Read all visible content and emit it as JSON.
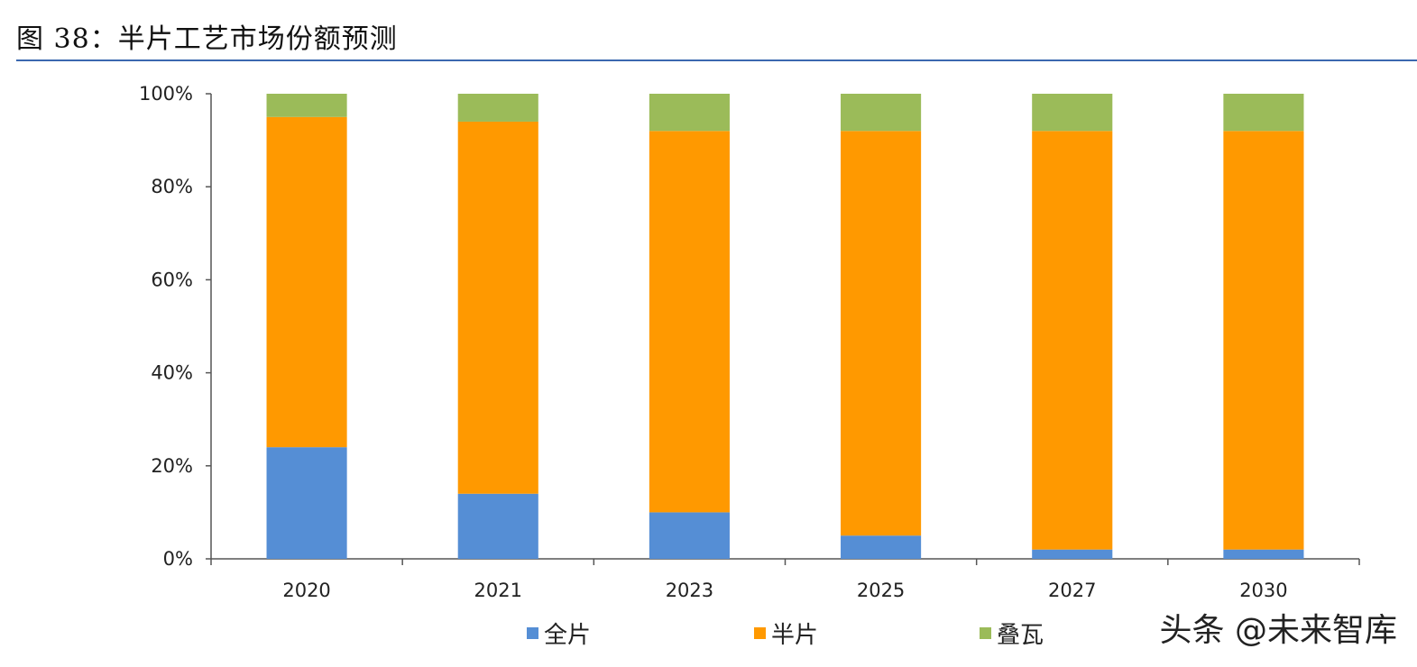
{
  "figure": {
    "title": "图 38：半片工艺市场份额预测",
    "watermark": "头条 @未来智库"
  },
  "chart_data": {
    "type": "bar",
    "stacked": true,
    "percent_stacked": true,
    "title": "图 38：半片工艺市场份额预测",
    "xlabel": "",
    "ylabel": "",
    "ylim": [
      0,
      100
    ],
    "yticks": [
      "0%",
      "20%",
      "40%",
      "60%",
      "80%",
      "100%"
    ],
    "categories": [
      "2020",
      "2021",
      "2023",
      "2025",
      "2027",
      "2030"
    ],
    "series": [
      {
        "name": "全片",
        "color": "#558ed5",
        "values": [
          24,
          14,
          10,
          5,
          2,
          2
        ]
      },
      {
        "name": "半片",
        "color": "#ff9900",
        "values": [
          71,
          80,
          82,
          87,
          90,
          90
        ]
      },
      {
        "name": "叠瓦",
        "color": "#9bbb59",
        "values": [
          5,
          6,
          8,
          8,
          8,
          8
        ]
      }
    ],
    "legend_position": "bottom",
    "grid": false
  }
}
